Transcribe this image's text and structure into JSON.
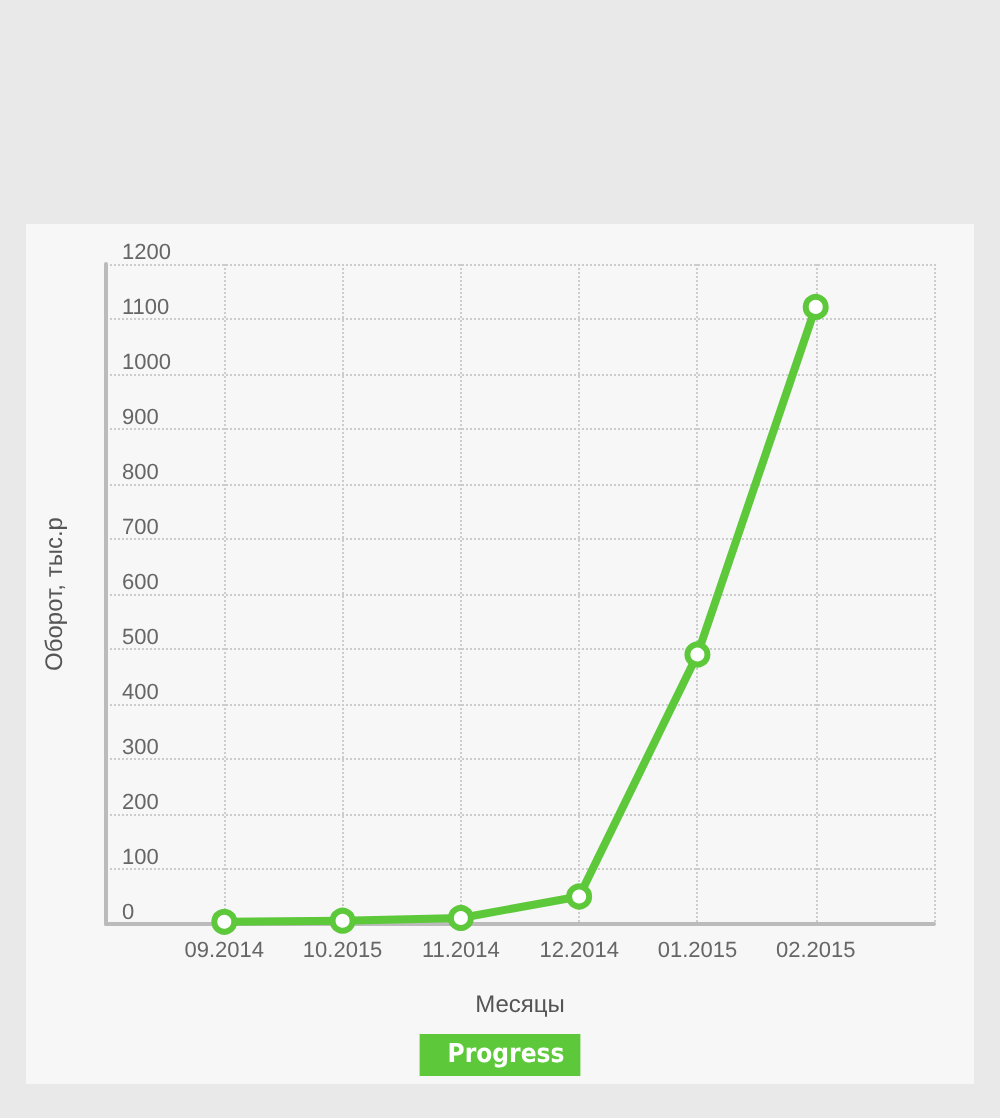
{
  "chart_data": {
    "type": "line",
    "xlabel": "Месяцы",
    "ylabel": "Оборот, тыс.р",
    "categories": [
      null,
      "09.2014",
      "10.2015",
      "11.2014",
      "12.2014",
      "01.2015",
      "02.2015",
      null
    ],
    "series": [
      {
        "name": "Progress",
        "color": "#5cc83a",
        "values": [
          null,
          4,
          6,
          11,
          50,
          490,
          1122,
          null
        ]
      }
    ],
    "ylim": [
      0,
      1200
    ],
    "yticks": [
      0,
      100,
      200,
      300,
      400,
      500,
      600,
      700,
      800,
      900,
      1000,
      1100,
      1200
    ],
    "grid": true,
    "legend": "bottom",
    "marker": "circle",
    "line_style": "solid"
  }
}
